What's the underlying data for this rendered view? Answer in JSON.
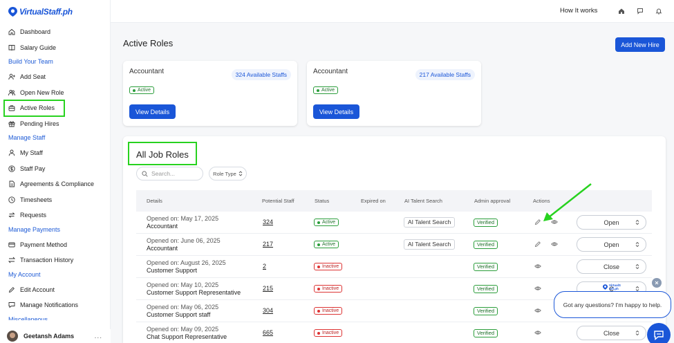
{
  "brand": {
    "name": "VirtualStaff.ph"
  },
  "sidebar": {
    "top_items": [
      {
        "label": "Dashboard",
        "icon": "home-icon"
      },
      {
        "label": "Salary Guide",
        "icon": "book-icon"
      }
    ],
    "sections": [
      {
        "title": "Build Your Team",
        "items": [
          {
            "label": "Add Seat",
            "icon": "user-plus-icon"
          },
          {
            "label": "Open New Role",
            "icon": "users-icon"
          },
          {
            "label": "Active Roles",
            "icon": "briefcase-icon",
            "active": true
          },
          {
            "label": "Pending Hires",
            "icon": "gift-icon"
          }
        ]
      },
      {
        "title": "Manage Staff",
        "items": [
          {
            "label": "My Staff",
            "icon": "user-icon"
          },
          {
            "label": "Staff Pay",
            "icon": "dollar-icon"
          },
          {
            "label": "Agreements & Compliance",
            "icon": "document-icon"
          },
          {
            "label": "Timesheets",
            "icon": "clock-icon"
          },
          {
            "label": "Requests",
            "icon": "arrows-icon"
          }
        ]
      },
      {
        "title": "Manage Payments",
        "items": [
          {
            "label": "Payment Method",
            "icon": "card-icon"
          },
          {
            "label": "Transaction History",
            "icon": "swap-icon"
          }
        ]
      },
      {
        "title": "My Account",
        "items": [
          {
            "label": "Edit Account",
            "icon": "edit-icon"
          },
          {
            "label": "Manage Notifications",
            "icon": "chat-icon"
          }
        ]
      },
      {
        "title": "Miscellaneous",
        "items": []
      }
    ],
    "user": {
      "name": "Geetansh Adams",
      "more": "..."
    }
  },
  "topbar": {
    "how_it_works": "How It works",
    "icons": [
      "home-icon",
      "message-icon",
      "bell-icon"
    ]
  },
  "page": {
    "title": "Active Roles",
    "add_button": "Add New Hire"
  },
  "cards": [
    {
      "role": "Accountant",
      "available": "324 Available Staffs",
      "status": "Active",
      "button": "View Details"
    },
    {
      "role": "Accountant",
      "available": "217 Available Staffs",
      "status": "Active",
      "button": "View Details"
    }
  ],
  "table": {
    "title": "All Job Roles",
    "search_placeholder": "Search...",
    "filter_label": "Role Type",
    "columns": [
      "Details",
      "Potential Staff",
      "Status",
      "Expired on",
      "AI Talent Search",
      "Admin approval",
      "Actions"
    ],
    "rows": [
      {
        "opened": "Opened on: May 17, 2025",
        "role": "Accountant",
        "potential": "324",
        "status": "Active",
        "ai": "AI Talent Search",
        "approval": "Verified",
        "editable": true,
        "action": "Open"
      },
      {
        "opened": "Opened on: June 06, 2025",
        "role": "Accountant",
        "potential": "217",
        "status": "Active",
        "ai": "AI Talent Search",
        "approval": "Verified",
        "editable": true,
        "action": "Open"
      },
      {
        "opened": "Opened on: August 26, 2025",
        "role": "Customer Support",
        "potential": "2",
        "status": "Inactive",
        "ai": "",
        "approval": "Verified",
        "editable": false,
        "action": "Close"
      },
      {
        "opened": "Opened on: May 10, 2025",
        "role": "Customer Support Representative",
        "potential": "215",
        "status": "Inactive",
        "ai": "",
        "approval": "Verified",
        "editable": false,
        "action": "C"
      },
      {
        "opened": "Opened on: May 06, 2025",
        "role": "Customer Support staff",
        "potential": "304",
        "status": "Inactive",
        "ai": "",
        "approval": "Verified",
        "editable": false,
        "action": ""
      },
      {
        "opened": "Opened on: May 09, 2025",
        "role": "Chat Support Representative",
        "potential": "665",
        "status": "Inactive",
        "ai": "",
        "approval": "Verified",
        "editable": false,
        "action": "Close"
      }
    ]
  },
  "chat": {
    "message": "Got any questions? I'm happy to help.",
    "mini_logo": "VirtualStaff.ph"
  },
  "colors": {
    "primary": "#1a56d8",
    "active": "#2a9d3a",
    "inactive": "#dd3333",
    "highlight": "#27d21f"
  }
}
